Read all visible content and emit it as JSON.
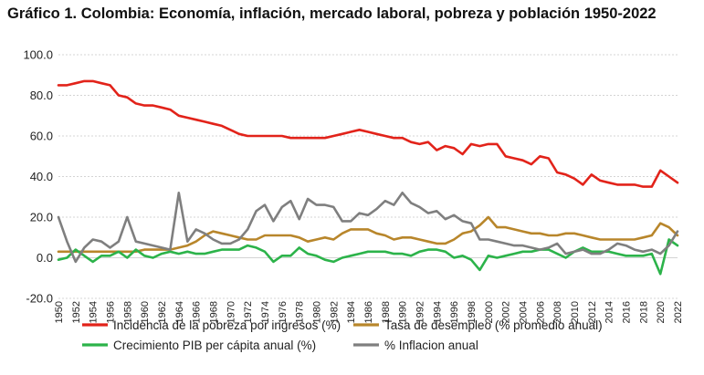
{
  "chart_data": {
    "type": "line",
    "title": "Gráfico 1. Colombia: Economía, inflación, mercado laboral, pobreza y población 1950-2022",
    "xlabel": "",
    "ylabel": "",
    "ylim": [
      -20,
      100
    ],
    "yticks": [
      -20,
      0,
      20,
      40,
      60,
      80,
      100
    ],
    "ytick_labels": [
      "-20.0",
      "0.0",
      "20.0",
      "40.0",
      "60.0",
      "80.0",
      "100.0"
    ],
    "xticks": [
      1950,
      1952,
      1954,
      1956,
      1958,
      1960,
      1962,
      1964,
      1966,
      1968,
      1970,
      1972,
      1974,
      1976,
      1978,
      1980,
      1982,
      1984,
      1986,
      1988,
      1990,
      1992,
      1994,
      1996,
      1998,
      2000,
      2002,
      2004,
      2006,
      2008,
      2010,
      2012,
      2014,
      2016,
      2018,
      2020,
      2022
    ],
    "xtick_labels": [
      "1950",
      "1952",
      "1954",
      "1956",
      "1958",
      "1960",
      "1962",
      "1964",
      "1966",
      "1968",
      "1970",
      "1972",
      "1974",
      "1976",
      "1978",
      "1980",
      "1982",
      "1984",
      "1986",
      "1988",
      "1990",
      "1992",
      "1994",
      "1996",
      "1998",
      "2000",
      "2002",
      "2004",
      "2006",
      "2008",
      "2010",
      "2012",
      "2014",
      "2016",
      "2018",
      "2020",
      "2022"
    ],
    "grid": true,
    "legend_position": "bottom",
    "x": [
      1950,
      1951,
      1952,
      1953,
      1954,
      1955,
      1956,
      1957,
      1958,
      1959,
      1960,
      1961,
      1962,
      1963,
      1964,
      1965,
      1966,
      1967,
      1968,
      1969,
      1970,
      1971,
      1972,
      1973,
      1974,
      1975,
      1976,
      1977,
      1978,
      1979,
      1980,
      1981,
      1982,
      1983,
      1984,
      1985,
      1986,
      1987,
      1988,
      1989,
      1990,
      1991,
      1992,
      1993,
      1994,
      1995,
      1996,
      1997,
      1998,
      1999,
      2000,
      2001,
      2002,
      2003,
      2004,
      2005,
      2006,
      2007,
      2008,
      2009,
      2010,
      2011,
      2012,
      2013,
      2014,
      2015,
      2016,
      2017,
      2018,
      2019,
      2020,
      2021,
      2022
    ],
    "series": [
      {
        "name": "Incidencia de la pobreza por ingresos (%)",
        "color": "#e2231a",
        "values": [
          85,
          85,
          86,
          87,
          87,
          86,
          85,
          80,
          79,
          76,
          75,
          75,
          74,
          73,
          70,
          69,
          68,
          67,
          66,
          65,
          63,
          61,
          60,
          60,
          60,
          60,
          60,
          59,
          59,
          59,
          59,
          59,
          60,
          61,
          62,
          63,
          62,
          61,
          60,
          59,
          59,
          57,
          56,
          57,
          53,
          55,
          54,
          51,
          56,
          55,
          56,
          56,
          50,
          49,
          48,
          46,
          50,
          49,
          42,
          41,
          39,
          36,
          41,
          38,
          37,
          36,
          36,
          36,
          35,
          35,
          43,
          40,
          37
        ]
      },
      {
        "name": "Tasa de desempleo (% promedio anual)",
        "color": "#b8862b",
        "values": [
          3,
          3,
          3,
          3,
          3,
          3,
          3,
          3,
          3,
          3,
          4,
          4,
          4,
          4,
          5,
          6,
          8,
          11,
          13,
          12,
          11,
          10,
          9,
          9,
          11,
          11,
          11,
          11,
          10,
          8,
          9,
          10,
          9,
          12,
          14,
          14,
          14,
          12,
          11,
          9,
          10,
          10,
          9,
          8,
          7,
          7,
          9,
          12,
          13,
          16,
          20,
          15,
          15,
          14,
          13,
          12,
          12,
          11,
          11,
          12,
          12,
          11,
          10,
          9,
          9,
          9,
          9,
          9,
          10,
          11,
          17,
          15,
          11
        ]
      },
      {
        "name": "Crecimiento PIB per cápita anual (%)",
        "color": "#2cb34a",
        "values": [
          -1,
          0,
          4,
          1,
          -2,
          1,
          1,
          3,
          0,
          4,
          1,
          0,
          2,
          3,
          2,
          3,
          2,
          2,
          3,
          4,
          4,
          4,
          6,
          5,
          3,
          -2,
          1,
          1,
          5,
          2,
          1,
          -1,
          -2,
          0,
          1,
          2,
          3,
          3,
          3,
          2,
          2,
          1,
          3,
          4,
          4,
          3,
          0,
          1,
          -1,
          -6,
          1,
          0,
          1,
          2,
          3,
          3,
          4,
          4,
          2,
          0,
          3,
          5,
          3,
          3,
          3,
          2,
          1,
          1,
          1,
          2,
          -8,
          9,
          6
        ]
      },
      {
        "name": "% Inflacion anual",
        "color": "#7f7f7f",
        "values": [
          20,
          8,
          -2,
          5,
          9,
          8,
          5,
          8,
          20,
          8,
          7,
          6,
          5,
          4,
          32,
          8,
          14,
          12,
          9,
          7,
          7,
          9,
          14,
          23,
          26,
          18,
          25,
          28,
          19,
          29,
          26,
          26,
          25,
          18,
          18,
          22,
          21,
          24,
          28,
          26,
          32,
          27,
          25,
          22,
          23,
          19,
          21,
          18,
          17,
          9,
          9,
          8,
          7,
          6,
          6,
          5,
          4,
          5,
          7,
          2,
          3,
          4,
          2,
          2,
          4,
          7,
          6,
          4,
          3,
          4,
          2,
          6,
          13
        ]
      }
    ]
  }
}
